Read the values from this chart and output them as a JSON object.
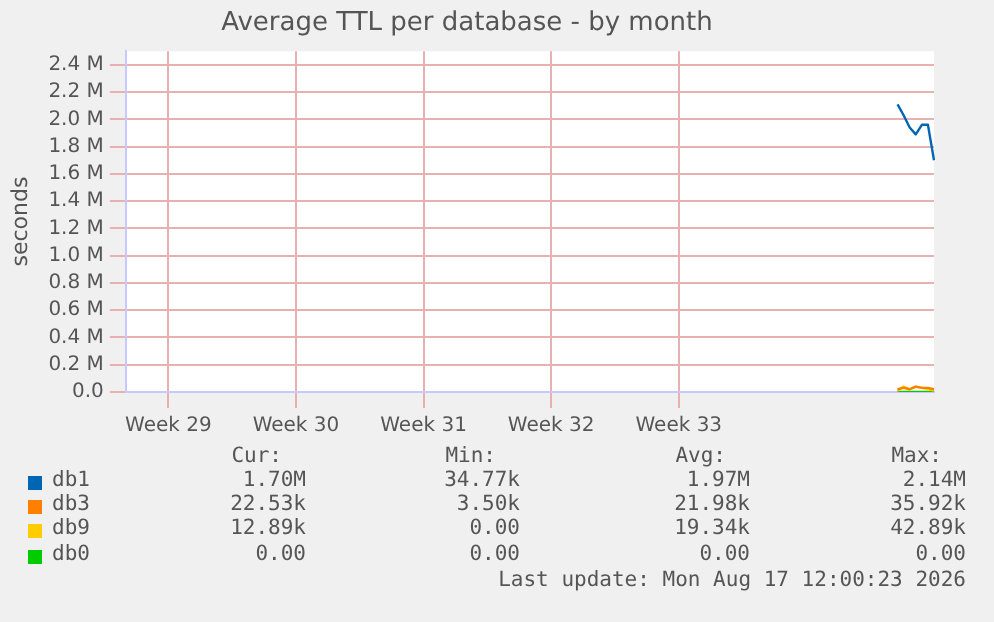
{
  "chart_data": {
    "type": "line",
    "title": "Average TTL per database - by month",
    "ylabel": "seconds",
    "categories": [
      null,
      null,
      null,
      null,
      null,
      null,
      null,
      "Week 29",
      null,
      null,
      null,
      null,
      null,
      null,
      null,
      null,
      null,
      null,
      null,
      null,
      null,
      null,
      null,
      null,
      null,
      null,
      null,
      null,
      "Week 30",
      null,
      null,
      null,
      null,
      null,
      null,
      null,
      null,
      null,
      null,
      null,
      null,
      null,
      null,
      null,
      null,
      null,
      null,
      null,
      null,
      "Week 31",
      null,
      null,
      null,
      null,
      null,
      null,
      null,
      null,
      null,
      null,
      null,
      null,
      null,
      null,
      null,
      null,
      null,
      null,
      null,
      null,
      "Week 32",
      null,
      null,
      null,
      null,
      null,
      null,
      null,
      null,
      null,
      null,
      null,
      null,
      null,
      null,
      null,
      null,
      null,
      null,
      null,
      null,
      "Week 33",
      null,
      null,
      null,
      null,
      null,
      null,
      null,
      null,
      null,
      null,
      null,
      null,
      null,
      null,
      null,
      null,
      null,
      null,
      null,
      null,
      null,
      null,
      null,
      null,
      null,
      null,
      null,
      null,
      null,
      null,
      null,
      null,
      null,
      null,
      null,
      null,
      null,
      null,
      null,
      null,
      null,
      null
    ],
    "ylim": [
      0,
      2500000
    ],
    "yticks": [
      {
        "value": 0,
        "label": "0.0"
      },
      {
        "value": 200000,
        "label": "0.2 M"
      },
      {
        "value": 400000,
        "label": "0.4 M"
      },
      {
        "value": 600000,
        "label": "0.6 M"
      },
      {
        "value": 800000,
        "label": "0.8 M"
      },
      {
        "value": 1000000,
        "label": "1.0 M"
      },
      {
        "value": 1200000,
        "label": "1.2 M"
      },
      {
        "value": 1400000,
        "label": "1.4 M"
      },
      {
        "value": 1600000,
        "label": "1.6 M"
      },
      {
        "value": 1800000,
        "label": "1.8 M"
      },
      {
        "value": 2000000,
        "label": "2.0 M"
      },
      {
        "value": 2200000,
        "label": "2.2 M"
      },
      {
        "value": 2400000,
        "label": "2.4 M"
      }
    ],
    "series": [
      {
        "name": "db1",
        "color": "#0066b3",
        "values": [
          null,
          null,
          null,
          null,
          null,
          null,
          null,
          null,
          null,
          null,
          null,
          null,
          null,
          null,
          null,
          null,
          null,
          null,
          null,
          null,
          null,
          null,
          null,
          null,
          null,
          null,
          null,
          null,
          null,
          null,
          null,
          null,
          null,
          null,
          null,
          null,
          null,
          null,
          null,
          null,
          null,
          null,
          null,
          null,
          null,
          null,
          null,
          null,
          null,
          null,
          null,
          null,
          null,
          null,
          null,
          null,
          null,
          null,
          null,
          null,
          null,
          null,
          null,
          null,
          null,
          null,
          null,
          null,
          null,
          null,
          null,
          null,
          null,
          null,
          null,
          null,
          null,
          null,
          null,
          null,
          null,
          null,
          null,
          null,
          null,
          null,
          null,
          null,
          null,
          null,
          null,
          null,
          null,
          null,
          null,
          null,
          null,
          null,
          null,
          null,
          null,
          null,
          null,
          null,
          null,
          null,
          null,
          null,
          null,
          null,
          null,
          null,
          null,
          null,
          null,
          null,
          null,
          null,
          null,
          null,
          null,
          null,
          null,
          null,
          null,
          null,
          null,
          2110000,
          2030000,
          1940000,
          1890000,
          1960000,
          1960000,
          1700000
        ]
      },
      {
        "name": "db3",
        "color": "#ff8000",
        "values": [
          null,
          null,
          null,
          null,
          null,
          null,
          null,
          null,
          null,
          null,
          null,
          null,
          null,
          null,
          null,
          null,
          null,
          null,
          null,
          null,
          null,
          null,
          null,
          null,
          null,
          null,
          null,
          null,
          null,
          null,
          null,
          null,
          null,
          null,
          null,
          null,
          null,
          null,
          null,
          null,
          null,
          null,
          null,
          null,
          null,
          null,
          null,
          null,
          null,
          null,
          null,
          null,
          null,
          null,
          null,
          null,
          null,
          null,
          null,
          null,
          null,
          null,
          null,
          null,
          null,
          null,
          null,
          null,
          null,
          null,
          null,
          null,
          null,
          null,
          null,
          null,
          null,
          null,
          null,
          null,
          null,
          null,
          null,
          null,
          null,
          null,
          null,
          null,
          null,
          null,
          null,
          null,
          null,
          null,
          null,
          null,
          null,
          null,
          null,
          null,
          null,
          null,
          null,
          null,
          null,
          null,
          null,
          null,
          null,
          null,
          null,
          null,
          null,
          null,
          null,
          null,
          null,
          null,
          null,
          null,
          null,
          null,
          null,
          null,
          null,
          null,
          null,
          20000,
          30000,
          20000,
          40000,
          30000,
          30000,
          20000
        ]
      },
      {
        "name": "db9",
        "color": "#ffcc00",
        "values": [
          null,
          null,
          null,
          null,
          null,
          null,
          null,
          null,
          null,
          null,
          null,
          null,
          null,
          null,
          null,
          null,
          null,
          null,
          null,
          null,
          null,
          null,
          null,
          null,
          null,
          null,
          null,
          null,
          null,
          null,
          null,
          null,
          null,
          null,
          null,
          null,
          null,
          null,
          null,
          null,
          null,
          null,
          null,
          null,
          null,
          null,
          null,
          null,
          null,
          null,
          null,
          null,
          null,
          null,
          null,
          null,
          null,
          null,
          null,
          null,
          null,
          null,
          null,
          null,
          null,
          null,
          null,
          null,
          null,
          null,
          null,
          null,
          null,
          null,
          null,
          null,
          null,
          null,
          null,
          null,
          null,
          null,
          null,
          null,
          null,
          null,
          null,
          null,
          null,
          null,
          null,
          null,
          null,
          null,
          null,
          null,
          null,
          null,
          null,
          null,
          null,
          null,
          null,
          null,
          null,
          null,
          null,
          null,
          null,
          null,
          null,
          null,
          null,
          null,
          null,
          null,
          null,
          null,
          null,
          null,
          null,
          null,
          null,
          null,
          null,
          null,
          null,
          10000,
          40000,
          20000,
          40000,
          30000,
          20000,
          10000
        ]
      },
      {
        "name": "db0",
        "color": "#00cc00",
        "values": [
          null,
          null,
          null,
          null,
          null,
          null,
          null,
          null,
          null,
          null,
          null,
          null,
          null,
          null,
          null,
          null,
          null,
          null,
          null,
          null,
          null,
          null,
          null,
          null,
          null,
          null,
          null,
          null,
          null,
          null,
          null,
          null,
          null,
          null,
          null,
          null,
          null,
          null,
          null,
          null,
          null,
          null,
          null,
          null,
          null,
          null,
          null,
          null,
          null,
          null,
          null,
          null,
          null,
          null,
          null,
          null,
          null,
          null,
          null,
          null,
          null,
          null,
          null,
          null,
          null,
          null,
          null,
          null,
          null,
          null,
          null,
          null,
          null,
          null,
          null,
          null,
          null,
          null,
          null,
          null,
          null,
          null,
          null,
          null,
          null,
          null,
          null,
          null,
          null,
          null,
          null,
          null,
          null,
          null,
          null,
          null,
          null,
          null,
          null,
          null,
          null,
          null,
          null,
          null,
          null,
          null,
          null,
          null,
          null,
          null,
          null,
          null,
          null,
          null,
          null,
          null,
          null,
          null,
          null,
          null,
          null,
          null,
          null,
          null,
          null,
          null,
          null,
          0,
          0,
          0,
          0,
          0,
          0,
          0
        ]
      }
    ],
    "grid": true,
    "legend": "bottom",
    "marker": "none",
    "line_style": "solid",
    "annotations": [
      "Cur:",
      "Min:",
      "Avg:",
      "Max:",
      "1.70M",
      "34.77k",
      "1.97M",
      "2.14M",
      "22.53k",
      "3.50k",
      "21.98k",
      "35.92k",
      "12.89k",
      "0.00",
      "19.34k",
      "42.89k",
      "0.00",
      "0.00",
      "0.00",
      "0.00",
      "Last update: Mon Aug 17 12:00:23 2026"
    ]
  }
}
